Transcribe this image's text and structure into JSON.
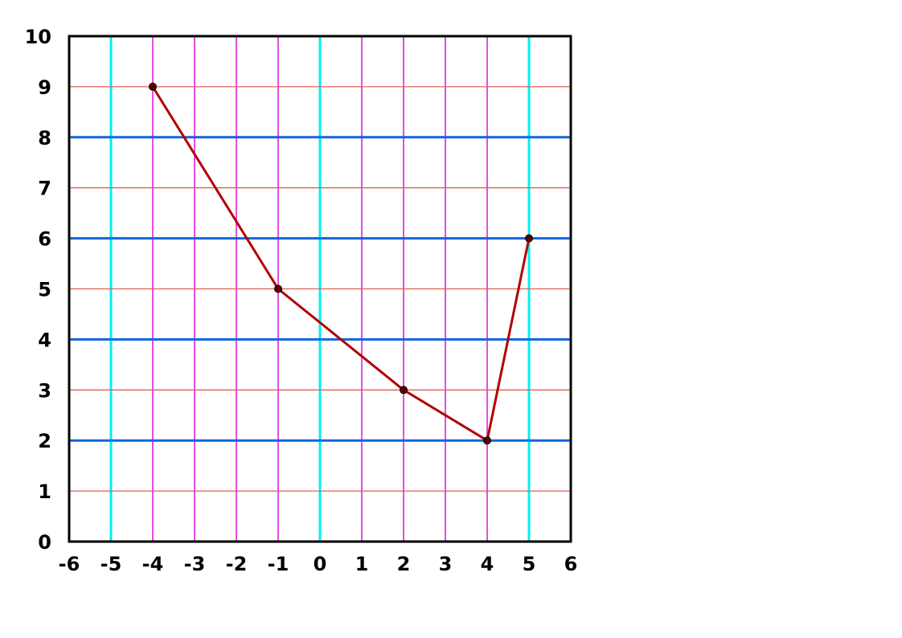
{
  "chart_data": {
    "type": "line",
    "title": "",
    "xlabel": "",
    "ylabel": "",
    "xlim": [
      -6,
      6
    ],
    "ylim": [
      0,
      10
    ],
    "x_ticks": [
      -6,
      -5,
      -4,
      -3,
      -2,
      -1,
      0,
      1,
      2,
      3,
      4,
      5,
      6
    ],
    "y_ticks": [
      0,
      1,
      2,
      3,
      4,
      5,
      6,
      7,
      8,
      9,
      10
    ],
    "x_tick_labels": [
      "-6",
      "-5",
      "-4",
      "-3",
      "-2",
      "-1",
      "0",
      "1",
      "2",
      "3",
      "4",
      "5",
      "6"
    ],
    "y_tick_labels": [
      "0",
      "1",
      "2",
      "3",
      "4",
      "5",
      "6",
      "7",
      "8",
      "9",
      "10"
    ],
    "grid": true,
    "series": [
      {
        "x": [
          -4,
          -1,
          2,
          4,
          5
        ],
        "y": [
          9,
          5,
          3,
          2,
          6
        ],
        "color": "#b30000",
        "marker_color": "#5a0000"
      }
    ],
    "colors": {
      "grid_x_major": "#00f0f0",
      "grid_x_minor": "#dd22dd",
      "grid_y_major": "#1166dd",
      "grid_y_minor": "#e06050",
      "axis": "#000000"
    }
  }
}
